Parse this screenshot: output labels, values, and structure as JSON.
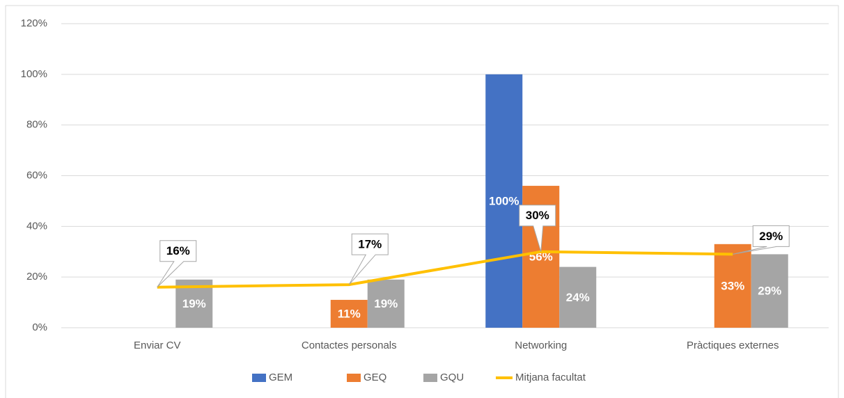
{
  "chart_data": {
    "type": "bar",
    "categories": [
      "Enviar CV",
      "Contactes personals",
      "Networking",
      "Pràctiques externes"
    ],
    "series": [
      {
        "name": "GEM",
        "color": "#4472c4",
        "values": [
          null,
          null,
          100,
          null
        ],
        "value_labels": [
          null,
          null,
          "100%",
          null
        ]
      },
      {
        "name": "GEQ",
        "color": "#ed7d31",
        "values": [
          null,
          11,
          56,
          33
        ],
        "value_labels": [
          null,
          "11%",
          "56%",
          "33%"
        ]
      },
      {
        "name": "GQU",
        "color": "#a5a5a5",
        "values": [
          19,
          19,
          24,
          29
        ],
        "value_labels": [
          "19%",
          "19%",
          "24%",
          "29%"
        ]
      },
      {
        "name": "Mitjana facultat",
        "type": "line",
        "color": "#ffc000",
        "values": [
          16,
          17,
          30,
          29
        ],
        "value_labels": [
          "16%",
          "17%",
          "30%",
          "29%"
        ]
      }
    ],
    "ylim": [
      0,
      120
    ],
    "yticks": [
      {
        "value": 0,
        "label": "0%"
      },
      {
        "value": 20,
        "label": "20%"
      },
      {
        "value": 40,
        "label": "40%"
      },
      {
        "value": 60,
        "label": "60%"
      },
      {
        "value": 80,
        "label": "80%"
      },
      {
        "value": 100,
        "label": "100%"
      },
      {
        "value": 120,
        "label": "120%"
      }
    ],
    "grid": true,
    "legend": "bottom"
  }
}
